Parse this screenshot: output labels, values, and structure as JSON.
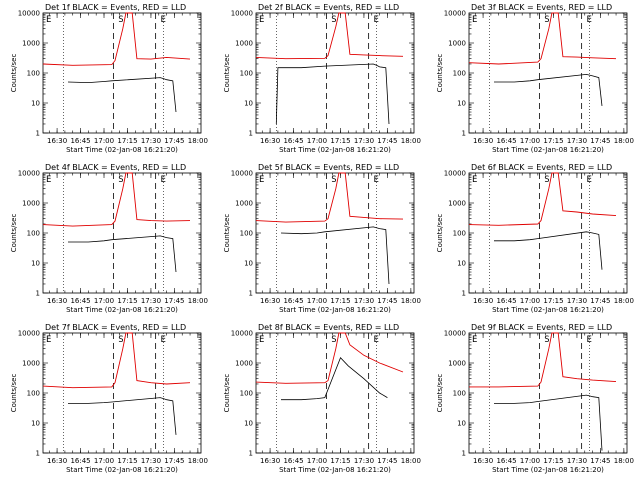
{
  "colors": {
    "events": "#000000",
    "lld": "#e00000",
    "background": "#ffffff"
  },
  "x_tick_labels": [
    "16:30",
    "16:45",
    "17:00",
    "17:15",
    "17:30",
    "17:45",
    "18:00"
  ],
  "y_tick_labels": [
    "1",
    "10",
    "100",
    "1000",
    "10000"
  ],
  "chart_data": [
    {
      "type": "line",
      "title": "Det 1f BLACK = Events, RED = LLD",
      "xlabel": "Start Time (02-Jan-08 16:21:20)",
      "ylabel": "Counts/sec",
      "log_y": true,
      "ylim": [
        1,
        10000
      ],
      "xlim": [
        "16:21",
        "18:02"
      ],
      "vlines_dotted": [
        "16:34",
        "17:38"
      ],
      "vlines_dashed": [
        "17:06",
        "17:33"
      ],
      "markers": [
        "E",
        "S",
        "E"
      ],
      "series": [
        {
          "name": "LLD",
          "color": "#e00000",
          "x": [
            "16:21",
            "16:40",
            "17:05",
            "17:07",
            "17:12",
            "17:14",
            "17:18",
            "17:21",
            "17:30",
            "17:40",
            "17:55"
          ],
          "y": [
            200,
            180,
            190,
            260,
            3000,
            10000,
            10000,
            300,
            290,
            330,
            290
          ]
        },
        {
          "name": "Events",
          "color": "#000000",
          "x": [
            "16:37",
            "16:50",
            "17:00",
            "17:05",
            "17:36",
            "17:38",
            "17:40",
            "17:44",
            "17:46"
          ],
          "y": [
            50,
            48,
            52,
            55,
            70,
            65,
            60,
            55,
            5
          ]
        }
      ]
    },
    {
      "type": "line",
      "title": "Det 2f BLACK = Events, RED = LLD",
      "xlabel": "Start Time (02-Jan-08 16:21:20)",
      "ylabel": "Counts/sec",
      "log_y": true,
      "ylim": [
        1,
        10000
      ],
      "xlim": [
        "16:21",
        "18:02"
      ],
      "vlines_dotted": [
        "16:34",
        "17:38"
      ],
      "vlines_dashed": [
        "17:06",
        "17:33"
      ],
      "markers": [
        "E",
        "S",
        "E"
      ],
      "series": [
        {
          "name": "LLD",
          "color": "#e00000",
          "x": [
            "16:21",
            "16:40",
            "17:05",
            "17:07",
            "17:12",
            "17:14",
            "17:18",
            "17:21",
            "17:30",
            "17:40",
            "17:55"
          ],
          "y": [
            330,
            300,
            310,
            380,
            3500,
            10000,
            10000,
            420,
            400,
            380,
            360
          ]
        },
        {
          "name": "Events",
          "color": "#000000",
          "x": [
            "16:34",
            "16:35",
            "16:50",
            "17:05",
            "17:36",
            "17:38",
            "17:40",
            "17:44",
            "17:46"
          ],
          "y": [
            2,
            150,
            150,
            170,
            200,
            180,
            160,
            150,
            2
          ]
        }
      ]
    },
    {
      "type": "line",
      "title": "Det 3f BLACK = Events, RED = LLD",
      "xlabel": "Start Time (02-Jan-08 16:21:20)",
      "ylabel": "Counts/sec",
      "log_y": true,
      "ylim": [
        1,
        10000
      ],
      "xlim": [
        "16:21",
        "18:02"
      ],
      "vlines_dotted": [
        "16:34",
        "17:38"
      ],
      "vlines_dashed": [
        "17:06",
        "17:33"
      ],
      "markers": [
        "E",
        "S",
        "E"
      ],
      "series": [
        {
          "name": "LLD",
          "color": "#e00000",
          "x": [
            "16:21",
            "16:40",
            "17:05",
            "17:07",
            "17:12",
            "17:14",
            "17:18",
            "17:21",
            "17:30",
            "17:40",
            "17:55"
          ],
          "y": [
            220,
            200,
            230,
            300,
            3000,
            10000,
            10000,
            350,
            340,
            320,
            300
          ]
        },
        {
          "name": "Events",
          "color": "#000000",
          "x": [
            "16:37",
            "16:50",
            "17:00",
            "17:05",
            "17:36",
            "17:38",
            "17:40",
            "17:44",
            "17:46"
          ],
          "y": [
            50,
            50,
            55,
            60,
            90,
            85,
            80,
            70,
            8
          ]
        }
      ]
    },
    {
      "type": "line",
      "title": "Det 4f BLACK = Events, RED = LLD",
      "xlabel": "Start Time (02-Jan-08 16:21:20)",
      "ylabel": "Counts/sec",
      "log_y": true,
      "ylim": [
        1,
        10000
      ],
      "xlim": [
        "16:21",
        "18:02"
      ],
      "vlines_dotted": [
        "16:34",
        "17:38"
      ],
      "vlines_dashed": [
        "17:06",
        "17:33"
      ],
      "markers": [
        "E",
        "S",
        "E"
      ],
      "series": [
        {
          "name": "LLD",
          "color": "#e00000",
          "x": [
            "16:21",
            "16:40",
            "17:05",
            "17:07",
            "17:12",
            "17:14",
            "17:18",
            "17:21",
            "17:30",
            "17:40",
            "17:55"
          ],
          "y": [
            190,
            170,
            190,
            250,
            3000,
            10000,
            10000,
            280,
            260,
            250,
            260
          ]
        },
        {
          "name": "Events",
          "color": "#000000",
          "x": [
            "16:37",
            "16:50",
            "17:00",
            "17:05",
            "17:36",
            "17:38",
            "17:40",
            "17:44",
            "17:46"
          ],
          "y": [
            50,
            50,
            55,
            60,
            80,
            75,
            70,
            65,
            5
          ]
        }
      ]
    },
    {
      "type": "line",
      "title": "Det 5f BLACK = Events, RED = LLD",
      "xlabel": "Start Time (02-Jan-08 16:21:20)",
      "ylabel": "Counts/sec",
      "log_y": true,
      "ylim": [
        1,
        10000
      ],
      "xlim": [
        "16:21",
        "18:02"
      ],
      "vlines_dotted": [
        "16:34",
        "17:38"
      ],
      "vlines_dashed": [
        "17:06",
        "17:33"
      ],
      "markers": [
        "E",
        "S",
        "E"
      ],
      "series": [
        {
          "name": "LLD",
          "color": "#e00000",
          "x": [
            "16:21",
            "16:40",
            "17:05",
            "17:07",
            "17:12",
            "17:14",
            "17:18",
            "17:21",
            "17:30",
            "17:40",
            "17:55"
          ],
          "y": [
            260,
            230,
            250,
            300,
            3000,
            10000,
            10000,
            360,
            330,
            300,
            290
          ]
        },
        {
          "name": "Events",
          "color": "#000000",
          "x": [
            "16:37",
            "16:50",
            "17:00",
            "17:05",
            "17:36",
            "17:38",
            "17:40",
            "17:44",
            "17:46"
          ],
          "y": [
            100,
            95,
            100,
            110,
            160,
            150,
            140,
            130,
            2
          ]
        }
      ]
    },
    {
      "type": "line",
      "title": "Det 6f BLACK = Events, RED = LLD",
      "xlabel": "Start Time (02-Jan-08 16:21:20)",
      "ylabel": "Counts/sec",
      "log_y": true,
      "ylim": [
        1,
        10000
      ],
      "xlim": [
        "16:21",
        "18:02"
      ],
      "vlines_dotted": [
        "16:34",
        "17:38"
      ],
      "vlines_dashed": [
        "17:06",
        "17:33"
      ],
      "markers": [
        "E",
        "S",
        "E"
      ],
      "series": [
        {
          "name": "LLD",
          "color": "#e00000",
          "x": [
            "16:21",
            "16:40",
            "17:05",
            "17:07",
            "17:12",
            "17:14",
            "17:18",
            "17:21",
            "17:30",
            "17:40",
            "17:55"
          ],
          "y": [
            190,
            180,
            200,
            260,
            3000,
            10000,
            10000,
            550,
            500,
            430,
            380
          ]
        },
        {
          "name": "Events",
          "color": "#000000",
          "x": [
            "16:37",
            "16:50",
            "17:00",
            "17:05",
            "17:36",
            "17:38",
            "17:40",
            "17:44",
            "17:46"
          ],
          "y": [
            55,
            55,
            60,
            65,
            110,
            105,
            100,
            90,
            6
          ]
        }
      ]
    },
    {
      "type": "line",
      "title": "Det 7f BLACK = Events, RED = LLD",
      "xlabel": "Start Time (02-Jan-08 16:21:20)",
      "ylabel": "Counts/sec",
      "log_y": true,
      "ylim": [
        1,
        10000
      ],
      "xlim": [
        "16:21",
        "18:02"
      ],
      "vlines_dotted": [
        "16:34",
        "17:38"
      ],
      "vlines_dashed": [
        "17:06",
        "17:33"
      ],
      "markers": [
        "E",
        "S",
        "E"
      ],
      "series": [
        {
          "name": "LLD",
          "color": "#e00000",
          "x": [
            "16:21",
            "16:40",
            "17:05",
            "17:07",
            "17:12",
            "17:14",
            "17:18",
            "17:21",
            "17:30",
            "17:40",
            "17:55"
          ],
          "y": [
            170,
            150,
            160,
            220,
            3000,
            10000,
            10000,
            260,
            220,
            200,
            220
          ]
        },
        {
          "name": "Events",
          "color": "#000000",
          "x": [
            "16:37",
            "16:50",
            "17:00",
            "17:05",
            "17:36",
            "17:38",
            "17:40",
            "17:44",
            "17:46"
          ],
          "y": [
            45,
            45,
            48,
            50,
            70,
            65,
            60,
            55,
            4
          ]
        }
      ]
    },
    {
      "type": "line",
      "title": "Det 8f BLACK = Events, RED = LLD",
      "xlabel": "Start Time (02-Jan-08 16:21:20)",
      "ylabel": "Counts/sec",
      "log_y": true,
      "ylim": [
        1,
        10000
      ],
      "xlim": [
        "16:21",
        "18:02"
      ],
      "vlines_dotted": [
        "16:34",
        "17:38"
      ],
      "vlines_dashed": [
        "17:06",
        "17:33"
      ],
      "markers": [
        "E",
        "S",
        "E"
      ],
      "series": [
        {
          "name": "LLD",
          "color": "#e00000",
          "x": [
            "16:21",
            "16:40",
            "17:05",
            "17:07",
            "17:12",
            "17:14",
            "17:18",
            "17:21",
            "17:30",
            "17:40",
            "17:55"
          ],
          "y": [
            230,
            210,
            220,
            260,
            3000,
            10000,
            10000,
            4000,
            1800,
            1000,
            500
          ]
        },
        {
          "name": "Events",
          "color": "#000000",
          "x": [
            "16:37",
            "16:50",
            "17:00",
            "17:05",
            "17:15",
            "17:20",
            "17:30",
            "17:40",
            "17:45"
          ],
          "y": [
            60,
            60,
            65,
            70,
            1500,
            800,
            300,
            100,
            70
          ]
        }
      ]
    },
    {
      "type": "line",
      "title": "Det 9f BLACK = Events, RED = LLD",
      "xlabel": "Start Time (02-Jan-08 16:21:20)",
      "ylabel": "Counts/sec",
      "log_y": true,
      "ylim": [
        1,
        10000
      ],
      "xlim": [
        "16:21",
        "18:02"
      ],
      "vlines_dotted": [
        "16:34",
        "17:38"
      ],
      "vlines_dashed": [
        "17:06",
        "17:33"
      ],
      "markers": [
        "E",
        "S",
        "E"
      ],
      "series": [
        {
          "name": "LLD",
          "color": "#e00000",
          "x": [
            "16:21",
            "16:40",
            "17:05",
            "17:07",
            "17:12",
            "17:14",
            "17:18",
            "17:21",
            "17:30",
            "17:40",
            "17:55"
          ],
          "y": [
            160,
            160,
            170,
            230,
            3000,
            10000,
            10000,
            350,
            300,
            270,
            240
          ]
        },
        {
          "name": "Events",
          "color": "#000000",
          "x": [
            "16:37",
            "16:50",
            "17:00",
            "17:05",
            "17:36",
            "17:38",
            "17:40",
            "17:44",
            "17:46"
          ],
          "y": [
            45,
            45,
            48,
            52,
            85,
            80,
            75,
            70,
            1.2
          ]
        }
      ]
    }
  ]
}
